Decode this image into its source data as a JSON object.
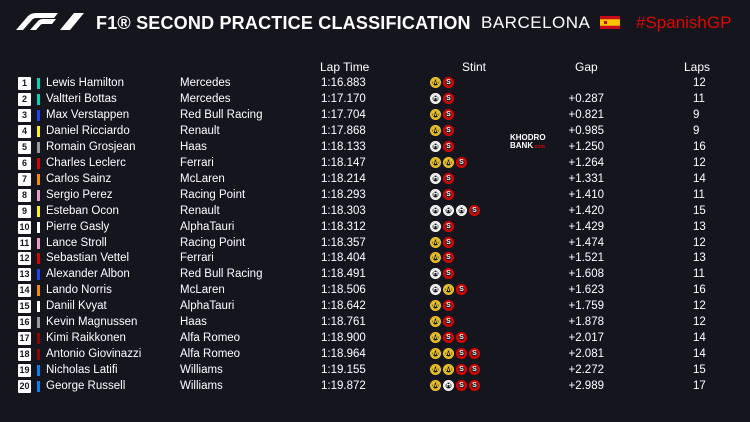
{
  "header": {
    "title": "F1® SECOND PRACTICE CLASSIFICATION",
    "location": "BARCELONA",
    "hashtag": "#SpanishGP",
    "logo_icon": "f1-logo-icon",
    "flag_icon": "spain-flag-icon"
  },
  "columns": {
    "lap_time": "Lap Time",
    "stint": "Stint",
    "gap": "Gap",
    "laps": "Laps"
  },
  "watermark": {
    "line1": "KHODRO",
    "line2": "BANK",
    "suffix": ".com"
  },
  "tyre_colors": {
    "M": "#f2c72a",
    "S": "#e10600",
    "H": "#ffffff"
  },
  "rows": [
    {
      "pos": "1",
      "driver": "Lewis Hamilton",
      "team": "Mercedes",
      "time": "1:16.883",
      "stints": [
        "M",
        "S"
      ],
      "gap": "",
      "laps": "12",
      "color": "#00d2be"
    },
    {
      "pos": "2",
      "driver": "Valtteri Bottas",
      "team": "Mercedes",
      "time": "1:17.170",
      "stints": [
        "H",
        "S"
      ],
      "gap": "+0.287",
      "laps": "11",
      "color": "#00d2be"
    },
    {
      "pos": "3",
      "driver": "Max Verstappen",
      "team": "Red Bull Racing",
      "time": "1:17.704",
      "stints": [
        "M",
        "S"
      ],
      "gap": "+0.821",
      "laps": "9",
      "color": "#1e41ff"
    },
    {
      "pos": "4",
      "driver": "Daniel Ricciardo",
      "team": "Renault",
      "time": "1:17.868",
      "stints": [
        "M",
        "S"
      ],
      "gap": "+0.985",
      "laps": "9",
      "color": "#fff500"
    },
    {
      "pos": "5",
      "driver": "Romain Grosjean",
      "team": "Haas",
      "time": "1:18.133",
      "stints": [
        "H",
        "S"
      ],
      "gap": "+1.250",
      "laps": "16",
      "color": "#9a9a9a"
    },
    {
      "pos": "6",
      "driver": "Charles Leclerc",
      "team": "Ferrari",
      "time": "1:18.147",
      "stints": [
        "M",
        "M",
        "S"
      ],
      "gap": "+1.264",
      "laps": "12",
      "color": "#dc0000"
    },
    {
      "pos": "7",
      "driver": "Carlos Sainz",
      "team": "McLaren",
      "time": "1:18.214",
      "stints": [
        "H",
        "S"
      ],
      "gap": "+1.331",
      "laps": "14",
      "color": "#ff8700"
    },
    {
      "pos": "8",
      "driver": "Sergio Perez",
      "team": "Racing Point",
      "time": "1:18.293",
      "stints": [
        "H",
        "S"
      ],
      "gap": "+1.410",
      "laps": "11",
      "color": "#f596c8"
    },
    {
      "pos": "9",
      "driver": "Esteban Ocon",
      "team": "Renault",
      "time": "1:18.303",
      "stints": [
        "H",
        "H",
        "H",
        "S"
      ],
      "gap": "+1.420",
      "laps": "15",
      "color": "#fff500"
    },
    {
      "pos": "10",
      "driver": "Pierre Gasly",
      "team": "AlphaTauri",
      "time": "1:18.312",
      "stints": [
        "H",
        "S"
      ],
      "gap": "+1.429",
      "laps": "13",
      "color": "#ffffff"
    },
    {
      "pos": "11",
      "driver": "Lance Stroll",
      "team": "Racing Point",
      "time": "1:18.357",
      "stints": [
        "M",
        "S"
      ],
      "gap": "+1.474",
      "laps": "12",
      "color": "#f596c8"
    },
    {
      "pos": "12",
      "driver": "Sebastian Vettel",
      "team": "Ferrari",
      "time": "1:18.404",
      "stints": [
        "M",
        "S"
      ],
      "gap": "+1.521",
      "laps": "13",
      "color": "#dc0000"
    },
    {
      "pos": "13",
      "driver": "Alexander Albon",
      "team": "Red Bull Racing",
      "time": "1:18.491",
      "stints": [
        "H",
        "S"
      ],
      "gap": "+1.608",
      "laps": "11",
      "color": "#1e41ff"
    },
    {
      "pos": "14",
      "driver": "Lando Norris",
      "team": "McLaren",
      "time": "1:18.506",
      "stints": [
        "H",
        "M",
        "S"
      ],
      "gap": "+1.623",
      "laps": "16",
      "color": "#ff8700"
    },
    {
      "pos": "15",
      "driver": "Daniil Kvyat",
      "team": "AlphaTauri",
      "time": "1:18.642",
      "stints": [
        "M",
        "S"
      ],
      "gap": "+1.759",
      "laps": "12",
      "color": "#ffffff"
    },
    {
      "pos": "16",
      "driver": "Kevin Magnussen",
      "team": "Haas",
      "time": "1:18.761",
      "stints": [
        "M",
        "S"
      ],
      "gap": "+1.878",
      "laps": "12",
      "color": "#9a9a9a"
    },
    {
      "pos": "17",
      "driver": "Kimi Raikkonen",
      "team": "Alfa Romeo",
      "time": "1:18.900",
      "stints": [
        "M",
        "S",
        "S"
      ],
      "gap": "+2.017",
      "laps": "14",
      "color": "#960000"
    },
    {
      "pos": "18",
      "driver": "Antonio Giovinazzi",
      "team": "Alfa Romeo",
      "time": "1:18.964",
      "stints": [
        "M",
        "M",
        "S",
        "S"
      ],
      "gap": "+2.081",
      "laps": "14",
      "color": "#960000"
    },
    {
      "pos": "19",
      "driver": "Nicholas Latifi",
      "team": "Williams",
      "time": "1:19.155",
      "stints": [
        "M",
        "M",
        "S",
        "S"
      ],
      "gap": "+2.272",
      "laps": "15",
      "color": "#0082fa"
    },
    {
      "pos": "20",
      "driver": "George Russell",
      "team": "Williams",
      "time": "1:19.872",
      "stints": [
        "M",
        "H",
        "S",
        "S"
      ],
      "gap": "+2.989",
      "laps": "17",
      "color": "#0082fa"
    }
  ]
}
